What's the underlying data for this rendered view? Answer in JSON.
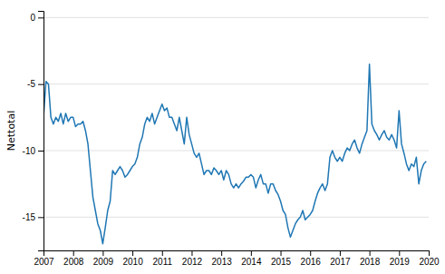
{
  "chart_data": {
    "type": "line",
    "ylabel": "Nettotal",
    "xlim": [
      2007.0,
      2020.0
    ],
    "ylim": [
      -17.5,
      0.5
    ],
    "yticks": [
      0,
      -5,
      -10,
      -15
    ],
    "xticks": [
      2007,
      2008,
      2009,
      2010,
      2011,
      2012,
      2013,
      2014,
      2015,
      2016,
      2017,
      2018,
      2019,
      2020
    ],
    "grid": true,
    "x": [
      2007.0,
      2007.083,
      2007.167,
      2007.25,
      2007.333,
      2007.417,
      2007.5,
      2007.583,
      2007.667,
      2007.75,
      2007.833,
      2007.917,
      2008.0,
      2008.083,
      2008.167,
      2008.25,
      2008.333,
      2008.417,
      2008.5,
      2008.583,
      2008.667,
      2008.75,
      2008.833,
      2008.917,
      2009.0,
      2009.083,
      2009.167,
      2009.25,
      2009.333,
      2009.417,
      2009.5,
      2009.583,
      2009.667,
      2009.75,
      2009.833,
      2009.917,
      2010.0,
      2010.083,
      2010.167,
      2010.25,
      2010.333,
      2010.417,
      2010.5,
      2010.583,
      2010.667,
      2010.75,
      2010.833,
      2010.917,
      2011.0,
      2011.083,
      2011.167,
      2011.25,
      2011.333,
      2011.417,
      2011.5,
      2011.583,
      2011.667,
      2011.75,
      2011.833,
      2011.917,
      2012.0,
      2012.083,
      2012.167,
      2012.25,
      2012.333,
      2012.417,
      2012.5,
      2012.583,
      2012.667,
      2012.75,
      2012.833,
      2012.917,
      2013.0,
      2013.083,
      2013.167,
      2013.25,
      2013.333,
      2013.417,
      2013.5,
      2013.583,
      2013.667,
      2013.75,
      2013.833,
      2013.917,
      2014.0,
      2014.083,
      2014.167,
      2014.25,
      2014.333,
      2014.417,
      2014.5,
      2014.583,
      2014.667,
      2014.75,
      2014.833,
      2014.917,
      2015.0,
      2015.083,
      2015.167,
      2015.25,
      2015.333,
      2015.417,
      2015.5,
      2015.583,
      2015.667,
      2015.75,
      2015.833,
      2015.917,
      2016.0,
      2016.083,
      2016.167,
      2016.25,
      2016.333,
      2016.417,
      2016.5,
      2016.583,
      2016.667,
      2016.75,
      2016.833,
      2016.917,
      2017.0,
      2017.083,
      2017.167,
      2017.25,
      2017.333,
      2017.417,
      2017.5,
      2017.583,
      2017.667,
      2017.75,
      2017.833,
      2017.917,
      2018.0,
      2018.083,
      2018.167,
      2018.25,
      2018.333,
      2018.417,
      2018.5,
      2018.583,
      2018.667,
      2018.75,
      2018.833,
      2018.917,
      2019.0,
      2019.083,
      2019.167,
      2019.25,
      2019.333,
      2019.417,
      2019.5,
      2019.583,
      2019.667,
      2019.75,
      2019.833,
      2019.917
    ],
    "values": [
      -7.5,
      -4.8,
      -5.0,
      -7.5,
      -8.0,
      -7.5,
      -7.8,
      -7.2,
      -8.0,
      -7.2,
      -7.8,
      -7.5,
      -7.5,
      -8.2,
      -8.0,
      -8.0,
      -7.8,
      -8.5,
      -9.5,
      -11.5,
      -13.5,
      -14.5,
      -15.5,
      -16.0,
      -17.0,
      -15.8,
      -14.5,
      -13.8,
      -11.5,
      -11.8,
      -11.5,
      -11.2,
      -11.5,
      -12.0,
      -11.8,
      -11.5,
      -11.2,
      -11.0,
      -10.5,
      -9.5,
      -9.0,
      -8.0,
      -7.5,
      -7.8,
      -7.2,
      -8.0,
      -7.5,
      -7.0,
      -6.5,
      -7.0,
      -6.8,
      -7.5,
      -7.5,
      -8.0,
      -8.5,
      -7.5,
      -8.5,
      -9.5,
      -7.5,
      -8.8,
      -9.5,
      -10.2,
      -10.5,
      -10.2,
      -11.0,
      -11.8,
      -11.5,
      -11.5,
      -11.8,
      -11.3,
      -11.5,
      -11.8,
      -11.5,
      -12.2,
      -11.5,
      -11.8,
      -12.5,
      -12.8,
      -12.5,
      -12.8,
      -12.5,
      -12.3,
      -12.0,
      -12.0,
      -11.8,
      -12.0,
      -12.8,
      -12.2,
      -11.8,
      -12.5,
      -12.5,
      -13.2,
      -12.5,
      -12.5,
      -13.0,
      -13.3,
      -13.8,
      -14.5,
      -14.8,
      -15.8,
      -16.5,
      -16.0,
      -15.5,
      -15.2,
      -15.0,
      -14.5,
      -15.2,
      -15.0,
      -14.8,
      -14.5,
      -13.8,
      -13.2,
      -12.8,
      -12.5,
      -13.0,
      -12.5,
      -10.5,
      -10.0,
      -10.5,
      -10.8,
      -10.5,
      -10.8,
      -10.2,
      -9.8,
      -10.0,
      -9.5,
      -9.2,
      -9.8,
      -10.2,
      -9.5,
      -9.0,
      -8.5,
      -3.5,
      -8.0,
      -8.5,
      -8.8,
      -9.2,
      -8.8,
      -8.5,
      -9.0,
      -9.2,
      -8.8,
      -9.2,
      -9.8,
      -7.0,
      -9.5,
      -10.2,
      -11.0,
      -11.5,
      -11.0,
      -11.2,
      -10.5,
      -12.5,
      -11.5,
      -11.0,
      -10.8
    ]
  }
}
